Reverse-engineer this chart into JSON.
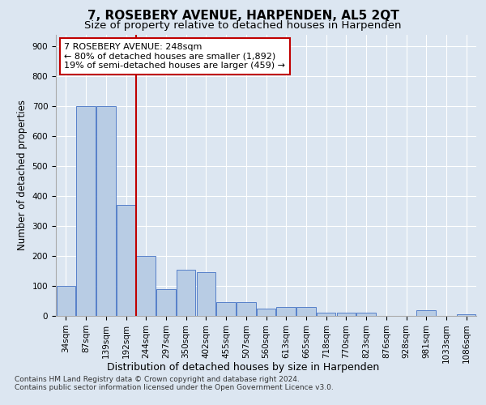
{
  "title": "7, ROSEBERY AVENUE, HARPENDEN, AL5 2QT",
  "subtitle": "Size of property relative to detached houses in Harpenden",
  "xlabel": "Distribution of detached houses by size in Harpenden",
  "ylabel": "Number of detached properties",
  "categories": [
    "34sqm",
    "87sqm",
    "139sqm",
    "192sqm",
    "244sqm",
    "297sqm",
    "350sqm",
    "402sqm",
    "455sqm",
    "507sqm",
    "560sqm",
    "613sqm",
    "665sqm",
    "718sqm",
    "770sqm",
    "823sqm",
    "876sqm",
    "928sqm",
    "981sqm",
    "1033sqm",
    "1086sqm"
  ],
  "values": [
    100,
    700,
    700,
    370,
    200,
    90,
    155,
    145,
    45,
    45,
    25,
    30,
    30,
    10,
    10,
    10,
    0,
    0,
    20,
    0,
    5
  ],
  "bar_color": "#b8cce4",
  "bar_edge_color": "#4472c4",
  "vline_x_index": 4,
  "vline_color": "#c00000",
  "annotation_text": "7 ROSEBERY AVENUE: 248sqm\n← 80% of detached houses are smaller (1,892)\n19% of semi-detached houses are larger (459) →",
  "annotation_box_color": "#ffffff",
  "annotation_box_edge_color": "#c00000",
  "ylim": [
    0,
    940
  ],
  "yticks": [
    0,
    100,
    200,
    300,
    400,
    500,
    600,
    700,
    800,
    900
  ],
  "footnote": "Contains HM Land Registry data © Crown copyright and database right 2024.\nContains public sector information licensed under the Open Government Licence v3.0.",
  "bg_color": "#dce6f1",
  "plot_bg_color": "#dce6f1",
  "grid_color": "#ffffff",
  "title_fontsize": 11,
  "subtitle_fontsize": 9.5,
  "xlabel_fontsize": 9,
  "ylabel_fontsize": 8.5,
  "tick_fontsize": 7.5,
  "annotation_fontsize": 8,
  "footnote_fontsize": 6.5
}
